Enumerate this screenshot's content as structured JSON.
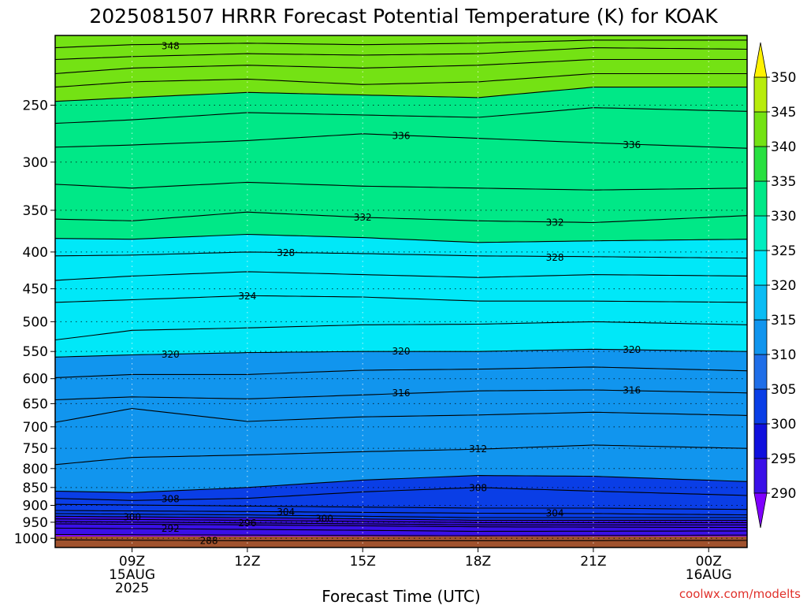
{
  "chart_data": {
    "type": "heatmap",
    "title": "2025081507 HRRR Forecast Potential Temperature (K) for KOAK",
    "xlabel": "Forecast Time (UTC)",
    "ylabel": "",
    "credit": "coolwx.com/modelts",
    "x_axis": {
      "unit": "hour since 2025-08-15 07Z",
      "range": [
        7,
        25
      ],
      "ticks": [
        {
          "value": 9,
          "lines": [
            "09Z",
            "15AUG",
            "2025"
          ]
        },
        {
          "value": 12,
          "lines": [
            "12Z"
          ]
        },
        {
          "value": 15,
          "lines": [
            "15Z"
          ]
        },
        {
          "value": 18,
          "lines": [
            "18Z"
          ]
        },
        {
          "value": 21,
          "lines": [
            "21Z"
          ]
        },
        {
          "value": 24,
          "lines": [
            "00Z",
            "16AUG"
          ]
        }
      ]
    },
    "y_axis": {
      "unit": "hPa",
      "scale": "log",
      "inverted": true,
      "range": [
        1030,
        200
      ],
      "ticks": [
        250,
        300,
        350,
        400,
        450,
        500,
        550,
        600,
        650,
        700,
        750,
        800,
        850,
        900,
        950,
        1000
      ]
    },
    "grid": {
      "horizontal": "dotted",
      "vertical": "dotted"
    },
    "surface_color": "#a0522d",
    "colorbar": {
      "position": "right",
      "extend": "both",
      "levels": [
        290,
        295,
        300,
        305,
        310,
        315,
        320,
        325,
        330,
        335,
        340,
        345,
        350
      ],
      "colors": [
        "#7f00ff",
        "#3a10e8",
        "#1010dd",
        "#0a3ee6",
        "#1f6ee8",
        "#1195ee",
        "#0bbcf4",
        "#00e8f8",
        "#00edc0",
        "#00e887",
        "#29e040",
        "#74e214",
        "#b8ec0c",
        "#fff200"
      ],
      "tick_labels": [
        "290",
        "295",
        "300",
        "305",
        "310",
        "315",
        "320",
        "325",
        "330",
        "335",
        "340",
        "345",
        "350"
      ]
    },
    "isotherms": [
      {
        "value": 288,
        "points": [
          [
            7,
            1005
          ],
          [
            12,
            1008
          ],
          [
            18,
            1008
          ],
          [
            25,
            1007
          ]
        ]
      },
      {
        "value": 290,
        "points": [
          [
            7,
            988
          ],
          [
            12,
            990
          ],
          [
            18,
            992
          ],
          [
            25,
            990
          ]
        ]
      },
      {
        "value": 292,
        "points": [
          [
            7,
            968
          ],
          [
            12,
            972
          ],
          [
            18,
            978
          ],
          [
            25,
            977
          ]
        ]
      },
      {
        "value": 294,
        "points": [
          [
            7,
            955
          ],
          [
            12,
            958
          ],
          [
            18,
            964
          ],
          [
            25,
            966
          ]
        ]
      },
      {
        "value": 296,
        "points": [
          [
            7,
            948
          ],
          [
            12,
            952
          ],
          [
            18,
            958
          ],
          [
            25,
            958
          ]
        ]
      },
      {
        "value": 298,
        "points": [
          [
            7,
            940
          ],
          [
            12,
            944
          ],
          [
            18,
            951
          ],
          [
            25,
            951
          ]
        ]
      },
      {
        "value": 300,
        "points": [
          [
            7,
            932
          ],
          [
            12,
            936
          ],
          [
            18,
            944
          ],
          [
            25,
            944
          ]
        ]
      },
      {
        "value": 302,
        "points": [
          [
            7,
            924
          ],
          [
            12,
            928
          ],
          [
            18,
            936
          ],
          [
            25,
            936
          ]
        ]
      },
      {
        "value": 304,
        "points": [
          [
            7,
            915
          ],
          [
            12,
            918
          ],
          [
            18,
            923
          ],
          [
            21,
            924
          ],
          [
            25,
            928
          ]
        ]
      },
      {
        "value": 306,
        "points": [
          [
            7,
            897
          ],
          [
            12,
            902
          ],
          [
            18,
            908
          ],
          [
            21,
            908
          ],
          [
            25,
            912
          ]
        ]
      },
      {
        "value": 308,
        "points": [
          [
            7,
            880
          ],
          [
            9,
            886
          ],
          [
            12,
            880
          ],
          [
            15,
            862
          ],
          [
            18,
            850
          ],
          [
            21,
            860
          ],
          [
            25,
            872
          ]
        ]
      },
      {
        "value": 310,
        "points": [
          [
            7,
            860
          ],
          [
            9,
            864
          ],
          [
            12,
            850
          ],
          [
            15,
            830
          ],
          [
            18,
            818
          ],
          [
            21,
            820
          ],
          [
            25,
            834
          ]
        ]
      },
      {
        "value": 312,
        "points": [
          [
            7,
            790
          ],
          [
            9,
            772
          ],
          [
            12,
            766
          ],
          [
            15,
            758
          ],
          [
            18,
            752
          ],
          [
            21,
            742
          ],
          [
            25,
            750
          ]
        ]
      },
      {
        "value": 314,
        "points": [
          [
            7,
            690
          ],
          [
            9,
            660
          ],
          [
            12,
            688
          ],
          [
            15,
            678
          ],
          [
            18,
            674
          ],
          [
            21,
            668
          ],
          [
            25,
            675
          ]
        ]
      },
      {
        "value": 316,
        "points": [
          [
            7,
            642
          ],
          [
            9,
            636
          ],
          [
            12,
            640
          ],
          [
            15,
            632
          ],
          [
            18,
            624
          ],
          [
            21,
            622
          ],
          [
            25,
            628
          ]
        ]
      },
      {
        "value": 318,
        "points": [
          [
            7,
            598
          ],
          [
            9,
            592
          ],
          [
            12,
            592
          ],
          [
            15,
            584
          ],
          [
            18,
            582
          ],
          [
            21,
            578
          ],
          [
            25,
            585
          ]
        ]
      },
      {
        "value": 320,
        "points": [
          [
            7,
            560
          ],
          [
            9,
            556
          ],
          [
            12,
            552
          ],
          [
            15,
            550
          ],
          [
            18,
            550
          ],
          [
            21,
            546
          ],
          [
            25,
            550
          ]
        ]
      },
      {
        "value": 322,
        "points": [
          [
            7,
            530
          ],
          [
            9,
            514
          ],
          [
            12,
            510
          ],
          [
            15,
            505
          ],
          [
            18,
            504
          ],
          [
            21,
            500
          ],
          [
            25,
            505
          ]
        ]
      },
      {
        "value": 324,
        "points": [
          [
            7,
            470
          ],
          [
            9,
            466
          ],
          [
            12,
            460
          ],
          [
            15,
            462
          ],
          [
            18,
            468
          ],
          [
            21,
            468
          ],
          [
            25,
            470
          ]
        ]
      },
      {
        "value": 326,
        "points": [
          [
            7,
            438
          ],
          [
            9,
            432
          ],
          [
            12,
            426
          ],
          [
            15,
            430
          ],
          [
            18,
            434
          ],
          [
            21,
            430
          ],
          [
            25,
            432
          ]
        ]
      },
      {
        "value": 328,
        "points": [
          [
            7,
            405
          ],
          [
            9,
            404
          ],
          [
            12,
            400
          ],
          [
            15,
            402
          ],
          [
            18,
            405
          ],
          [
            21,
            406
          ],
          [
            25,
            408
          ]
        ]
      },
      {
        "value": 330,
        "points": [
          [
            7,
            383
          ],
          [
            9,
            384
          ],
          [
            12,
            378
          ],
          [
            15,
            382
          ],
          [
            18,
            388
          ],
          [
            21,
            386
          ],
          [
            25,
            384
          ]
        ]
      },
      {
        "value": 332,
        "points": [
          [
            7,
            360
          ],
          [
            9,
            362
          ],
          [
            12,
            352
          ],
          [
            15,
            358
          ],
          [
            18,
            362
          ],
          [
            21,
            364
          ],
          [
            25,
            356
          ]
        ]
      },
      {
        "value": 334,
        "points": [
          [
            7,
            322
          ],
          [
            9,
            326
          ],
          [
            12,
            320
          ],
          [
            15,
            324
          ],
          [
            18,
            326
          ],
          [
            21,
            328
          ],
          [
            25,
            326
          ]
        ]
      },
      {
        "value": 336,
        "points": [
          [
            7,
            286
          ],
          [
            9,
            284
          ],
          [
            12,
            280
          ],
          [
            15,
            274
          ],
          [
            18,
            278
          ],
          [
            21,
            282
          ],
          [
            25,
            287
          ]
        ]
      },
      {
        "value": 338,
        "points": [
          [
            7,
            265
          ],
          [
            9,
            262
          ],
          [
            12,
            256
          ],
          [
            15,
            258
          ],
          [
            18,
            260
          ],
          [
            21,
            252
          ],
          [
            25,
            255
          ]
        ]
      },
      {
        "value": 340,
        "points": [
          [
            7,
            247
          ],
          [
            9,
            244
          ],
          [
            12,
            240
          ],
          [
            15,
            242
          ],
          [
            18,
            244
          ],
          [
            21,
            236
          ],
          [
            25,
            236
          ]
        ]
      },
      {
        "value": 342,
        "points": [
          [
            7,
            236
          ],
          [
            9,
            232
          ],
          [
            12,
            230
          ],
          [
            15,
            234
          ],
          [
            18,
            232
          ],
          [
            21,
            226
          ],
          [
            25,
            226
          ]
        ]
      },
      {
        "value": 344,
        "points": [
          [
            7,
            226
          ],
          [
            9,
            222
          ],
          [
            12,
            220
          ],
          [
            15,
            222
          ],
          [
            18,
            220
          ],
          [
            21,
            216
          ],
          [
            25,
            216
          ]
        ]
      },
      {
        "value": 346,
        "points": [
          [
            7,
            216
          ],
          [
            9,
            214
          ],
          [
            12,
            212
          ],
          [
            15,
            213
          ],
          [
            18,
            212
          ],
          [
            21,
            208
          ],
          [
            25,
            209
          ]
        ]
      },
      {
        "value": 348,
        "points": [
          [
            7,
            208
          ],
          [
            9,
            206
          ],
          [
            12,
            205
          ],
          [
            15,
            206
          ],
          [
            18,
            205
          ],
          [
            21,
            203
          ],
          [
            25,
            203
          ]
        ]
      }
    ],
    "contour_labels": [
      {
        "text": "348",
        "x": 10,
        "y": 207
      },
      {
        "text": "336",
        "x": 16,
        "y": 276
      },
      {
        "text": "336",
        "x": 22,
        "y": 284
      },
      {
        "text": "332",
        "x": 15,
        "y": 358
      },
      {
        "text": "332",
        "x": 20,
        "y": 364
      },
      {
        "text": "328",
        "x": 13,
        "y": 401
      },
      {
        "text": "328",
        "x": 20,
        "y": 407
      },
      {
        "text": "324",
        "x": 12,
        "y": 461
      },
      {
        "text": "320",
        "x": 10,
        "y": 555
      },
      {
        "text": "320",
        "x": 16,
        "y": 550
      },
      {
        "text": "320",
        "x": 22,
        "y": 547
      },
      {
        "text": "316",
        "x": 16,
        "y": 628
      },
      {
        "text": "316",
        "x": 22,
        "y": 623
      },
      {
        "text": "312",
        "x": 18,
        "y": 752
      },
      {
        "text": "308",
        "x": 18,
        "y": 851
      },
      {
        "text": "308",
        "x": 10,
        "y": 882
      },
      {
        "text": "304",
        "x": 13,
        "y": 919
      },
      {
        "text": "304",
        "x": 20,
        "y": 923
      },
      {
        "text": "300",
        "x": 9,
        "y": 935
      },
      {
        "text": "300",
        "x": 14,
        "y": 939
      },
      {
        "text": "296",
        "x": 12,
        "y": 953
      },
      {
        "text": "292",
        "x": 10,
        "y": 970
      },
      {
        "text": "288",
        "x": 11,
        "y": 1008
      }
    ]
  }
}
